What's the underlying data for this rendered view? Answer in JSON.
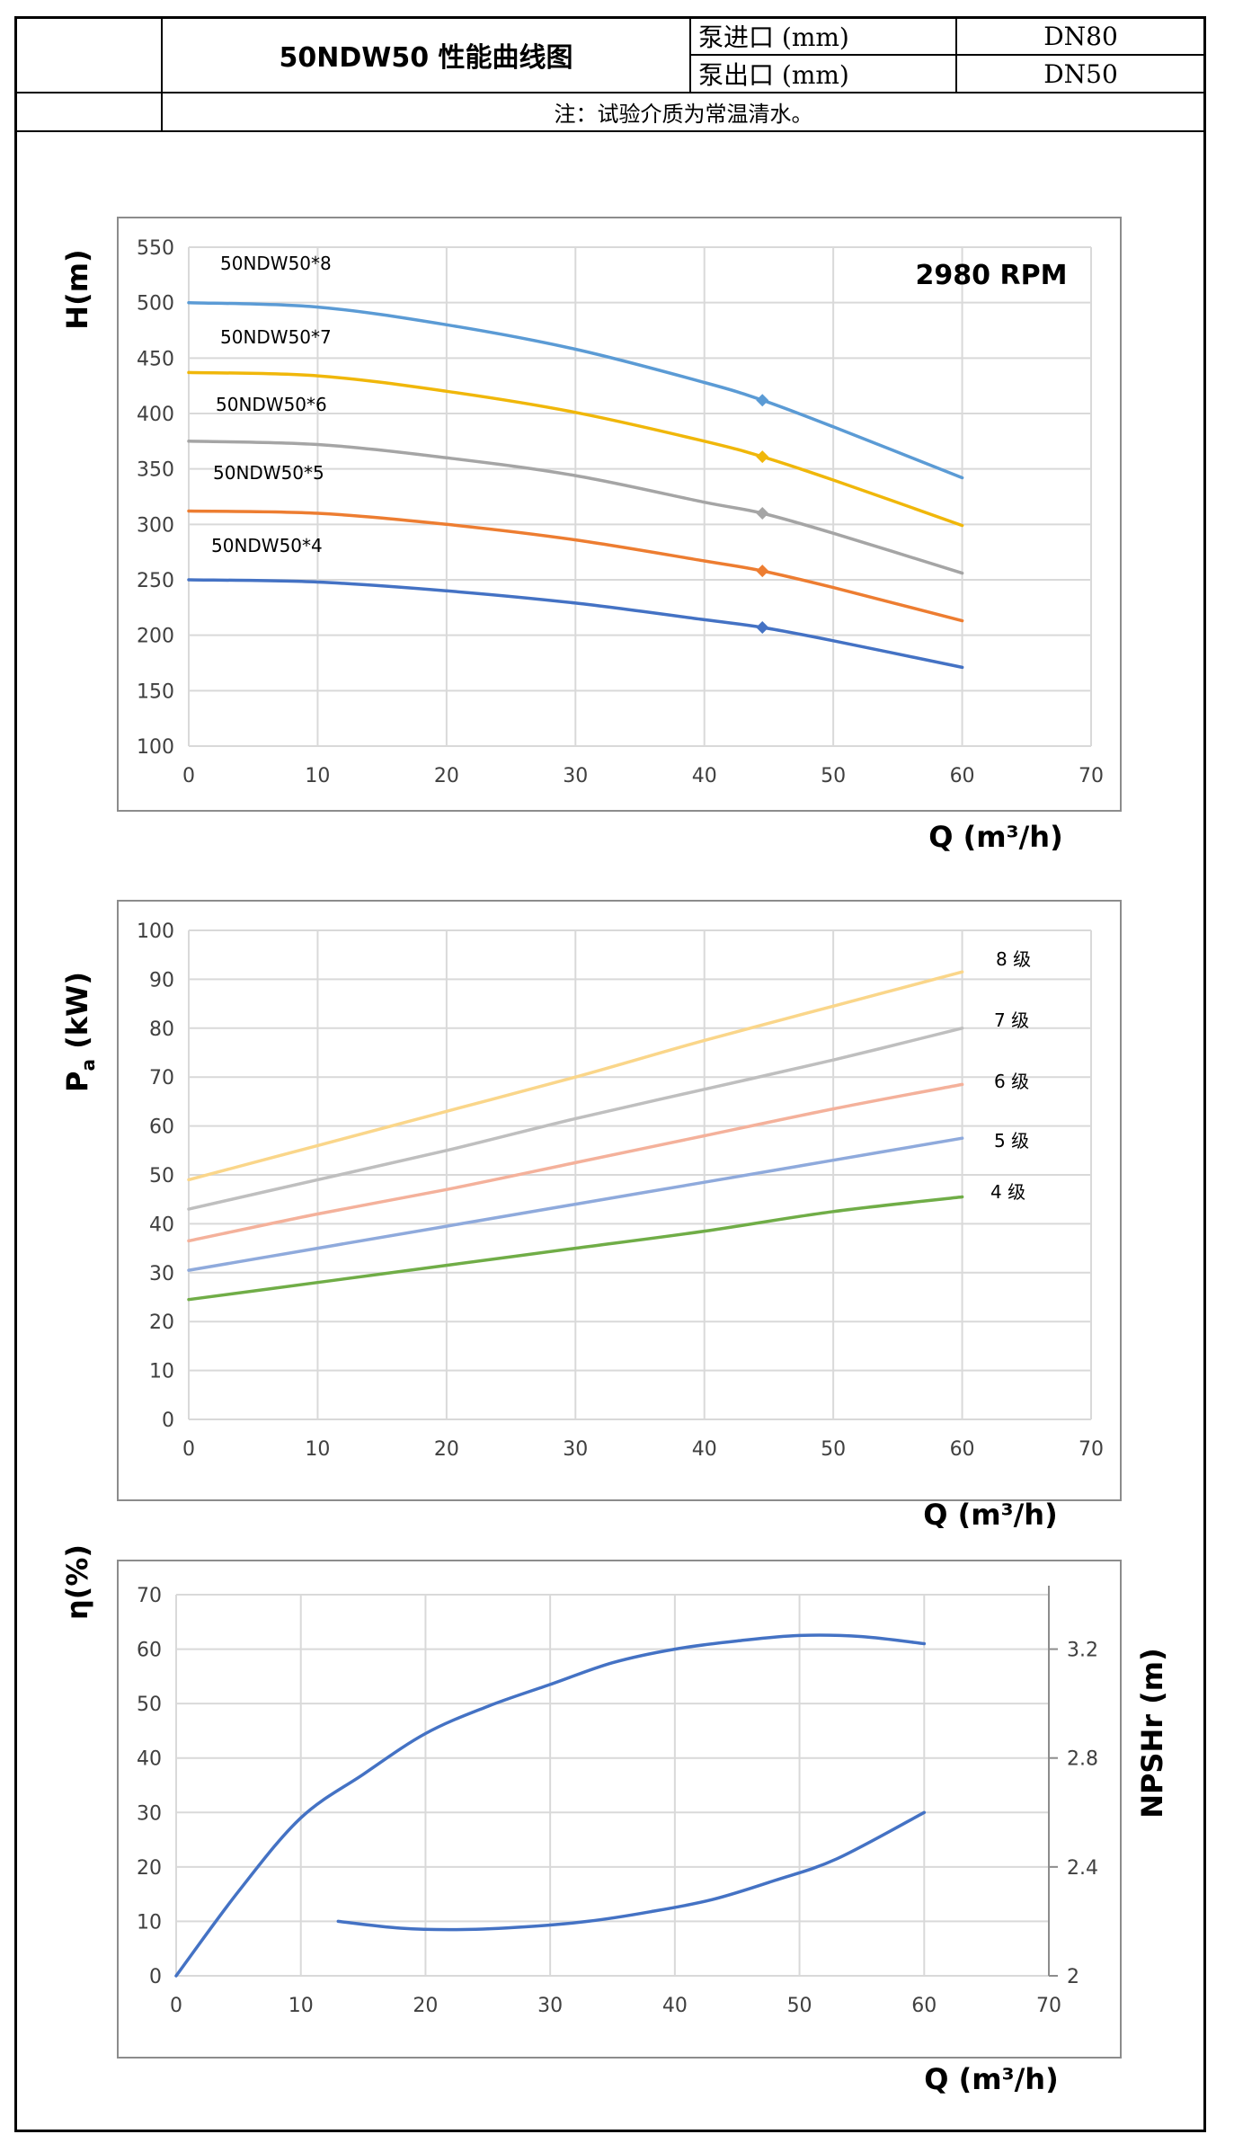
{
  "header": {
    "title": "50NDW50 性能曲线图",
    "inlet_label": "泵进口 (mm)",
    "inlet_value": "DN80",
    "outlet_label": "泵出口 (mm)",
    "outlet_value": "DN50",
    "note": "注：试验介质为常温清水。"
  },
  "chart_data": [
    {
      "type": "line",
      "ylabel": "H(m)",
      "xlabel": "Q (m³/h)",
      "annotation": "2980 RPM",
      "xlim": [
        0,
        70
      ],
      "ylim": [
        100,
        550
      ],
      "xticks": [
        "0",
        "10",
        "20",
        "30",
        "40",
        "50",
        "60",
        "70"
      ],
      "yticks": [
        "100",
        "150",
        "200",
        "250",
        "300",
        "350",
        "400",
        "450",
        "500",
        "550"
      ],
      "grid": true,
      "series": [
        {
          "name": "50NDW50*8",
          "color": "#5b9bd5",
          "x": [
            0,
            10,
            20,
            30,
            40,
            44.5,
            50,
            60
          ],
          "y": [
            500,
            496,
            480,
            458,
            428,
            412,
            388,
            342
          ],
          "marker": [
            44.5,
            412
          ]
        },
        {
          "name": "50NDW50*7",
          "color": "#f0b70a",
          "x": [
            0,
            10,
            20,
            30,
            40,
            44.5,
            50,
            60
          ],
          "y": [
            437,
            434,
            420,
            401,
            375,
            361,
            340,
            299
          ],
          "marker": [
            44.5,
            361
          ]
        },
        {
          "name": "50NDW50*6",
          "color": "#a5a5a5",
          "x": [
            0,
            10,
            20,
            30,
            40,
            44.5,
            50,
            60
          ],
          "y": [
            375,
            372,
            360,
            344,
            320,
            310,
            292,
            256
          ],
          "marker": [
            44.5,
            310
          ]
        },
        {
          "name": "50NDW50*5",
          "color": "#ed7d31",
          "x": [
            0,
            10,
            20,
            30,
            40,
            44.5,
            50,
            60
          ],
          "y": [
            312,
            310,
            300,
            286,
            267,
            258,
            243,
            213
          ],
          "marker": [
            44.5,
            258
          ]
        },
        {
          "name": "50NDW50*4",
          "color": "#4472c4",
          "x": [
            0,
            10,
            20,
            30,
            40,
            44.5,
            50,
            60
          ],
          "y": [
            250,
            248,
            240,
            229,
            214,
            207,
            195,
            171
          ],
          "marker": [
            44.5,
            207
          ]
        }
      ]
    },
    {
      "type": "line",
      "ylabel": "Pa (kW)",
      "ylabel_main": "P",
      "ylabel_sub": "a",
      "ylabel_rest": " (kW)",
      "xlabel": "Q (m³/h)",
      "xlim": [
        0,
        70
      ],
      "ylim": [
        0,
        100
      ],
      "xticks": [
        "0",
        "10",
        "20",
        "30",
        "40",
        "50",
        "60",
        "70"
      ],
      "yticks": [
        "0",
        "10",
        "20",
        "30",
        "40",
        "50",
        "60",
        "70",
        "80",
        "90",
        "100"
      ],
      "grid": true,
      "series": [
        {
          "name": "8 级",
          "color": "#fad68a",
          "x": [
            0,
            10,
            20,
            30,
            40,
            50,
            60
          ],
          "y": [
            49,
            56,
            63,
            70,
            77.5,
            84.5,
            91.5
          ]
        },
        {
          "name": "7 级",
          "color": "#bfbfbf",
          "x": [
            0,
            10,
            20,
            30,
            40,
            50,
            60
          ],
          "y": [
            43,
            49,
            55,
            61.5,
            67.5,
            73.5,
            80
          ]
        },
        {
          "name": "6 级",
          "color": "#f4b19b",
          "x": [
            0,
            10,
            20,
            30,
            40,
            50,
            60
          ],
          "y": [
            36.5,
            42,
            47,
            52.5,
            58,
            63.5,
            68.5
          ]
        },
        {
          "name": "5 级",
          "color": "#8faadc",
          "x": [
            0,
            10,
            20,
            30,
            40,
            50,
            60
          ],
          "y": [
            30.5,
            35,
            39.5,
            44,
            48.5,
            53,
            57.5
          ]
        },
        {
          "name": "4 级",
          "color": "#70ad47",
          "x": [
            0,
            10,
            20,
            30,
            40,
            50,
            60
          ],
          "y": [
            24.5,
            28,
            31.5,
            35,
            38.5,
            42.5,
            45.5
          ]
        }
      ]
    },
    {
      "type": "line",
      "ylabel": "η(%)",
      "ylabel_right": "NPSHr (m)",
      "xlabel": "Q (m³/h)",
      "xlim": [
        0,
        70
      ],
      "ylim": [
        0,
        70
      ],
      "ylim_right": [
        2,
        3.4
      ],
      "xticks": [
        "0",
        "10",
        "20",
        "30",
        "40",
        "50",
        "60",
        "70"
      ],
      "yticks": [
        "0",
        "10",
        "20",
        "30",
        "40",
        "50",
        "60",
        "70"
      ],
      "yticks_right": [
        "2",
        "2.4",
        "2.8",
        "3.2"
      ],
      "grid": true,
      "series": [
        {
          "axis": "left",
          "color": "#4472c4",
          "x": [
            0,
            5,
            10,
            15,
            20,
            25,
            30,
            35,
            40,
            45,
            50,
            55,
            60
          ],
          "y": [
            0,
            15.5,
            29,
            37,
            44.5,
            49.5,
            53.5,
            57.5,
            60,
            61.5,
            62.5,
            62.3,
            61
          ]
        },
        {
          "axis": "right",
          "color": "#4472c4",
          "x": [
            13,
            18,
            23,
            28,
            33,
            38,
            43,
            48,
            53,
            60
          ],
          "y": [
            2.2,
            2.175,
            2.17,
            2.18,
            2.2,
            2.235,
            2.28,
            2.35,
            2.43,
            2.6
          ]
        }
      ]
    }
  ]
}
